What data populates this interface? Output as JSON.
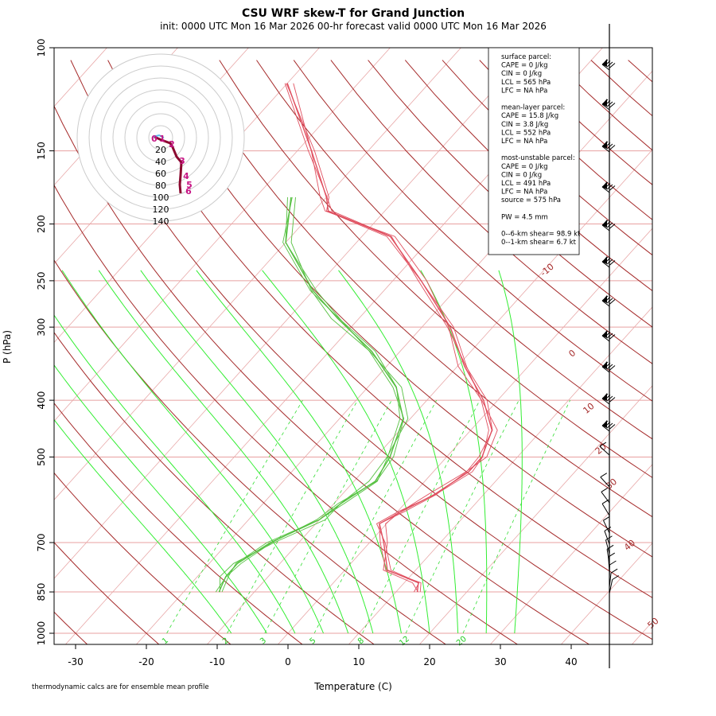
{
  "title": "CSU WRF skew-T for Grand Junction",
  "subtitle": "init: 0000 UTC Mon 16 Mar 2026     00-hr forecast valid 0000 UTC Mon 16 Mar 2026",
  "footnote": "thermodynamic calcs are for ensemble mean profile",
  "info_lines": [
    "surface parcel:",
    "CAPE = 0 J/kg",
    "CIN = 0 J/kg",
    "LCL = 565 hPa",
    "LFC = NA hPa",
    "",
    "mean-layer parcel:",
    "CAPE = 15.8 J/kg",
    "CIN = 3.8 J/kg",
    "LCL = 552 hPa",
    "LFC = NA hPa",
    "",
    "most-unstable parcel:",
    "CAPE = 0 J/kg",
    "CIN = 0 J/kg",
    "LCL = 491 hPa",
    "LFC = NA hPa",
    "source = 575 hPa",
    "",
    "PW =  4.5 mm",
    "",
    "0--6-km shear= 98.9 kt",
    "0--1-km shear= 6.7 kt"
  ],
  "chart_data": {
    "type": "line",
    "xlabel": "Temperature (C)",
    "ylabel": "P (hPa)",
    "xlim": [
      -33,
      51
    ],
    "ylim": [
      1050,
      100
    ],
    "x_ticks": [
      -30,
      -20,
      -10,
      0,
      10,
      20,
      30,
      40
    ],
    "y_ticks": [
      100,
      150,
      200,
      250,
      300,
      400,
      500,
      700,
      850,
      1000
    ],
    "isotherm_labels": [
      {
        "text": "-10",
        "value": -10
      },
      {
        "text": "0",
        "value": 0
      },
      {
        "text": "10",
        "value": 10
      },
      {
        "text": "20",
        "value": 20
      },
      {
        "text": "30",
        "value": 30
      },
      {
        "text": "40",
        "value": 40
      },
      {
        "text": "50",
        "value": 50
      }
    ],
    "mixing_ratio_labels": [
      "1",
      "2",
      "3",
      "5",
      "8",
      "12",
      "20"
    ],
    "series": [
      {
        "name": "temperature",
        "color": "#e05060",
        "points": [
          [
            13,
            850
          ],
          [
            12,
            820
          ],
          [
            6,
            780
          ],
          [
            2,
            700
          ],
          [
            -1,
            650
          ],
          [
            0.5,
            620
          ],
          [
            3,
            580
          ],
          [
            5,
            530
          ],
          [
            5,
            500
          ],
          [
            3,
            450
          ],
          [
            -2,
            400
          ],
          [
            -9,
            350
          ],
          [
            -16,
            300
          ],
          [
            -26,
            250
          ],
          [
            -36,
            210
          ],
          [
            -48,
            190
          ],
          [
            -50,
            180
          ],
          [
            -58,
            150
          ],
          [
            -70,
            115
          ]
        ]
      },
      {
        "name": "dewpoint",
        "color": "#55c040",
        "points": [
          [
            -15,
            850
          ],
          [
            -16,
            800
          ],
          [
            -16,
            760
          ],
          [
            -14,
            700
          ],
          [
            -10,
            640
          ],
          [
            -9,
            600
          ],
          [
            -7,
            550
          ],
          [
            -8,
            500
          ],
          [
            -11,
            430
          ],
          [
            -16,
            380
          ],
          [
            -24,
            330
          ],
          [
            -33,
            290
          ],
          [
            -40,
            260
          ],
          [
            -50,
            215
          ],
          [
            -55,
            180
          ]
        ]
      }
    ],
    "wind_barbs_side": "right",
    "hodograph": {
      "ring_labels": [
        "20",
        "40",
        "60",
        "80",
        "100",
        "120",
        "140"
      ],
      "height_labels": [
        "0",
        "1",
        "2",
        "3",
        "4",
        "5",
        "6"
      ]
    }
  }
}
